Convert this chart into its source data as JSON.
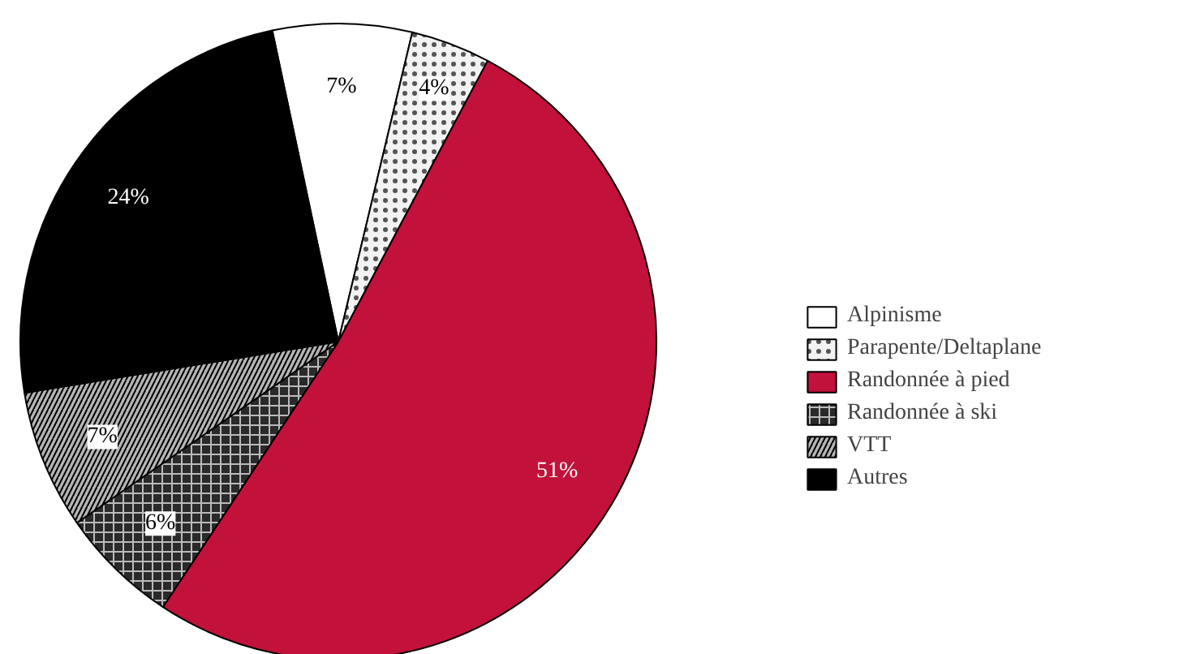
{
  "chart_data": {
    "type": "pie",
    "categories": [
      "Alpinisme",
      "Parapente/Deltaplane",
      "Randonnée à pied",
      "Randonnée à ski",
      "VTT",
      "Autres"
    ],
    "values": [
      7,
      4,
      51,
      6,
      7,
      24
    ],
    "colors": [
      "#ffffff",
      "#f2f2f2",
      "#c2113a",
      "#2a2a2a",
      "#b5b5b5",
      "#000000"
    ],
    "value_labels": [
      "7%",
      "4%",
      "51%",
      "6%",
      "7%",
      "24%"
    ],
    "legend": "right"
  }
}
